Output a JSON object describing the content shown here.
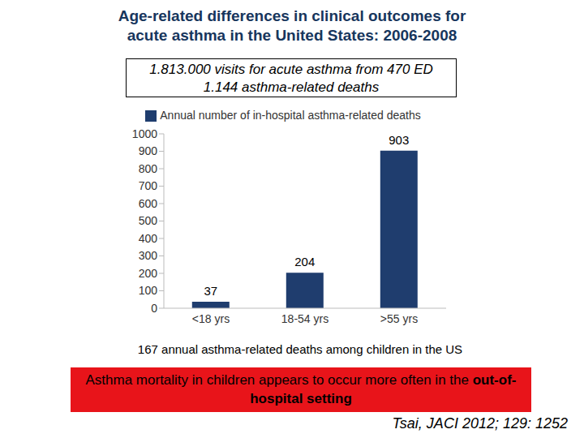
{
  "title": [
    "Age-related differences in clinical outcomes for",
    "acute asthma in the United States: 2006-2008"
  ],
  "box_lines": [
    "1.813.000 visits for acute asthma from 470 ED",
    "1.144 asthma-related deaths"
  ],
  "note": "167 annual asthma-related deaths among children in the US",
  "callout": {
    "text": "Asthma mortality in children appears to occur more often in the",
    "bold": "out-of-hospital setting"
  },
  "citation": "Tsai, JACI 2012; 129: 1252",
  "chart_data": {
    "type": "bar",
    "categories": [
      "<18 yrs",
      "18-54 yrs",
      ">55 yrs"
    ],
    "series": [
      {
        "name": "Annual number of in-hospital asthma-related deaths",
        "color": "#1f3d6e",
        "values": [
          37,
          204,
          903
        ]
      }
    ],
    "ylim": [
      0,
      1000
    ],
    "yticks": [
      0,
      100,
      200,
      300,
      400,
      500,
      600,
      700,
      800,
      900,
      1000
    ],
    "grid": false,
    "legend": "top",
    "data_labels": true
  }
}
